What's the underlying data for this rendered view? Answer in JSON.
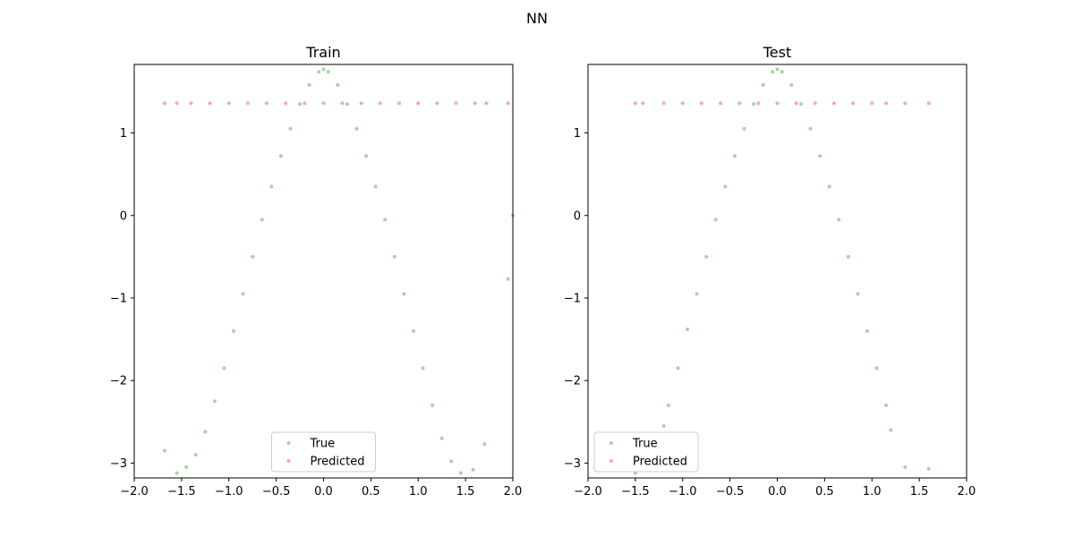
{
  "figure_title": "NN",
  "colors": {
    "true": "#008000",
    "predicted": "#ff0000"
  },
  "chart_data": [
    {
      "type": "scatter",
      "title": "Train",
      "xlabel": "",
      "ylabel": "",
      "xlim": [
        -2.0,
        2.0
      ],
      "ylim": [
        -3.18,
        1.83
      ],
      "xticks": [
        -2.0,
        -1.5,
        -1.0,
        -0.5,
        0.0,
        0.5,
        1.0,
        1.5,
        2.0
      ],
      "xtick_labels": [
        "−2.0",
        "−1.5",
        "−1.0",
        "−0.5",
        "0.0",
        "0.5",
        "1.0",
        "1.5",
        "2.0"
      ],
      "yticks": [
        -3,
        -2,
        -1,
        0,
        1
      ],
      "ytick_labels": [
        "−3",
        "−2",
        "−1",
        "0",
        "1"
      ],
      "grid": false,
      "legend": "lower-center",
      "series": [
        {
          "name": "True",
          "points": [
            [
              -1.68,
              -2.85
            ],
            [
              -1.55,
              -3.12
            ],
            [
              -1.45,
              -3.05
            ],
            [
              -1.35,
              -2.9
            ],
            [
              -1.25,
              -2.62
            ],
            [
              -1.15,
              -2.25
            ],
            [
              -1.05,
              -1.85
            ],
            [
              -0.95,
              -1.4
            ],
            [
              -0.85,
              -0.95
            ],
            [
              -0.75,
              -0.5
            ],
            [
              -0.65,
              -0.05
            ],
            [
              -0.55,
              0.35
            ],
            [
              -0.45,
              0.72
            ],
            [
              -0.35,
              1.05
            ],
            [
              -0.25,
              1.35
            ],
            [
              -0.15,
              1.58
            ],
            [
              -0.05,
              1.74
            ],
            [
              0.0,
              1.77
            ],
            [
              0.05,
              1.74
            ],
            [
              0.15,
              1.58
            ],
            [
              0.25,
              1.35
            ],
            [
              0.35,
              1.05
            ],
            [
              0.45,
              0.72
            ],
            [
              0.55,
              0.35
            ],
            [
              0.65,
              -0.05
            ],
            [
              0.75,
              -0.5
            ],
            [
              0.85,
              -0.95
            ],
            [
              0.95,
              -1.4
            ],
            [
              1.05,
              -1.85
            ],
            [
              1.15,
              -2.3
            ],
            [
              1.25,
              -2.7
            ],
            [
              1.35,
              -2.98
            ],
            [
              1.45,
              -3.12
            ],
            [
              1.58,
              -3.08
            ],
            [
              1.7,
              -2.77
            ],
            [
              1.95,
              -0.77
            ],
            [
              2.0,
              0.0
            ]
          ]
        },
        {
          "name": "Predicted",
          "points": [
            [
              -1.68,
              1.36
            ],
            [
              -1.55,
              1.36
            ],
            [
              -1.4,
              1.36
            ],
            [
              -1.2,
              1.36
            ],
            [
              -1.0,
              1.36
            ],
            [
              -0.8,
              1.36
            ],
            [
              -0.6,
              1.36
            ],
            [
              -0.4,
              1.36
            ],
            [
              -0.2,
              1.36
            ],
            [
              0.0,
              1.36
            ],
            [
              0.2,
              1.36
            ],
            [
              0.4,
              1.36
            ],
            [
              0.6,
              1.36
            ],
            [
              0.8,
              1.36
            ],
            [
              1.0,
              1.36
            ],
            [
              1.2,
              1.36
            ],
            [
              1.4,
              1.36
            ],
            [
              1.6,
              1.36
            ],
            [
              1.72,
              1.36
            ],
            [
              1.95,
              1.36
            ]
          ]
        }
      ]
    },
    {
      "type": "scatter",
      "title": "Test",
      "xlabel": "",
      "ylabel": "",
      "xlim": [
        -2.0,
        2.0
      ],
      "ylim": [
        -3.18,
        1.83
      ],
      "xticks": [
        -2.0,
        -1.5,
        -1.0,
        -0.5,
        0.0,
        0.5,
        1.0,
        1.5,
        2.0
      ],
      "xtick_labels": [
        "−2.0",
        "−1.5",
        "−1.0",
        "−0.5",
        "0.0",
        "0.5",
        "1.0",
        "1.5",
        "2.0"
      ],
      "yticks": [
        -3,
        -2,
        -1,
        0,
        1
      ],
      "ytick_labels": [
        "−3",
        "−2",
        "−1",
        "0",
        "1"
      ],
      "grid": false,
      "legend": "lower-left",
      "series": [
        {
          "name": "True",
          "points": [
            [
              -1.5,
              -3.12
            ],
            [
              -1.4,
              -3.08
            ],
            [
              -1.2,
              -2.55
            ],
            [
              -1.15,
              -2.3
            ],
            [
              -1.05,
              -1.85
            ],
            [
              -0.95,
              -1.38
            ],
            [
              -0.85,
              -0.95
            ],
            [
              -0.75,
              -0.5
            ],
            [
              -0.65,
              -0.05
            ],
            [
              -0.55,
              0.35
            ],
            [
              -0.45,
              0.72
            ],
            [
              -0.35,
              1.05
            ],
            [
              -0.25,
              1.35
            ],
            [
              -0.15,
              1.58
            ],
            [
              -0.05,
              1.74
            ],
            [
              0.0,
              1.77
            ],
            [
              0.05,
              1.74
            ],
            [
              0.15,
              1.58
            ],
            [
              0.25,
              1.35
            ],
            [
              0.35,
              1.05
            ],
            [
              0.45,
              0.72
            ],
            [
              0.55,
              0.35
            ],
            [
              0.65,
              -0.05
            ],
            [
              0.75,
              -0.5
            ],
            [
              0.85,
              -0.95
            ],
            [
              0.95,
              -1.4
            ],
            [
              1.05,
              -1.85
            ],
            [
              1.15,
              -2.3
            ],
            [
              1.2,
              -2.6
            ],
            [
              1.35,
              -3.05
            ],
            [
              1.6,
              -3.07
            ]
          ]
        },
        {
          "name": "Predicted",
          "points": [
            [
              -1.5,
              1.36
            ],
            [
              -1.42,
              1.36
            ],
            [
              -1.2,
              1.36
            ],
            [
              -1.0,
              1.36
            ],
            [
              -0.8,
              1.36
            ],
            [
              -0.6,
              1.36
            ],
            [
              -0.4,
              1.36
            ],
            [
              -0.2,
              1.36
            ],
            [
              0.0,
              1.36
            ],
            [
              0.2,
              1.36
            ],
            [
              0.4,
              1.36
            ],
            [
              0.6,
              1.36
            ],
            [
              0.8,
              1.36
            ],
            [
              1.0,
              1.36
            ],
            [
              1.15,
              1.36
            ],
            [
              1.35,
              1.36
            ],
            [
              1.6,
              1.36
            ]
          ]
        }
      ]
    }
  ]
}
